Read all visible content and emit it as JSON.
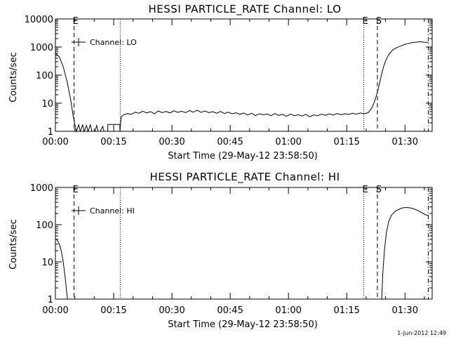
{
  "footer_timestamp": "1-Jun-2012 12:49",
  "chart_data": [
    {
      "type": "line",
      "title": "HESSI PARTICLE_RATE Channel: LO",
      "ylabel": "Counts/sec",
      "xlabel": "Start Time (29-May-12 23:58:50)",
      "y_scale": "log",
      "ylim": [
        1,
        10000
      ],
      "xlim_minutes": [
        0,
        97
      ],
      "x_ticks": [
        {
          "value": 0,
          "label": "00:00"
        },
        {
          "value": 15,
          "label": "00:15"
        },
        {
          "value": 30,
          "label": "00:30"
        },
        {
          "value": 45,
          "label": "00:45"
        },
        {
          "value": 60,
          "label": "01:00"
        },
        {
          "value": 75,
          "label": "01:15"
        },
        {
          "value": 90,
          "label": "01:30"
        }
      ],
      "y_ticks": [
        {
          "value": 1,
          "label": "1"
        },
        {
          "value": 10,
          "label": "10"
        },
        {
          "value": 100,
          "label": "100"
        },
        {
          "value": 1000,
          "label": "1000"
        },
        {
          "value": 10000,
          "label": "10000"
        }
      ],
      "legend": {
        "label": "Channel: LO",
        "placement": "top-left"
      },
      "markers": [
        {
          "x": 4.8,
          "style": "dashed",
          "label": "E"
        },
        {
          "x": 16.7,
          "style": "dotted",
          "label": ""
        },
        {
          "x": 79.4,
          "style": "dotted",
          "label": "E"
        },
        {
          "x": 82.9,
          "style": "dashed",
          "label": "S"
        },
        {
          "x": 96.0,
          "style": "dashdot",
          "label": ""
        }
      ],
      "series": [
        {
          "name": "",
          "points": [
            [
              0,
              600
            ],
            [
              1,
              450
            ],
            [
              2,
              200
            ],
            [
              3,
              60
            ],
            [
              4,
              12
            ],
            [
              4.5,
              4
            ],
            [
              5,
              1.8
            ],
            [
              5.4,
              1
            ],
            [
              6.0,
              1.7
            ],
            [
              6.4,
              1
            ],
            [
              7.0,
              1.7
            ],
            [
              7.4,
              1
            ],
            [
              8.0,
              1.6
            ],
            [
              8.4,
              1
            ],
            [
              9.0,
              1.7
            ],
            [
              9.4,
              1
            ],
            [
              10.2,
              1
            ],
            [
              10.6,
              1.6
            ],
            [
              11.0,
              1
            ],
            [
              11.5,
              1
            ],
            [
              12.2,
              1.5
            ],
            [
              12.5,
              1
            ],
            [
              13.5,
              1
            ],
            [
              13.5,
              1.75
            ],
            [
              16.6,
              1.75
            ],
            [
              16.6,
              1
            ],
            [
              16.9,
              3.2
            ],
            [
              17.5,
              3.8
            ],
            [
              18.5,
              4.3
            ],
            [
              19.5,
              4.0
            ],
            [
              20.5,
              4.8
            ],
            [
              21.5,
              4.4
            ],
            [
              22.5,
              5.2
            ],
            [
              23.5,
              4.5
            ],
            [
              24.5,
              5.0
            ],
            [
              25.5,
              4.2
            ],
            [
              26.5,
              5.3
            ],
            [
              27.5,
              4.6
            ],
            [
              28.5,
              5.1
            ],
            [
              29.5,
              4.5
            ],
            [
              30.5,
              5.4
            ],
            [
              31.5,
              4.7
            ],
            [
              32.5,
              5.2
            ],
            [
              33.5,
              4.6
            ],
            [
              34.5,
              5.5
            ],
            [
              35.5,
              4.8
            ],
            [
              36.5,
              5.6
            ],
            [
              37.5,
              4.7
            ],
            [
              38.5,
              5.3
            ],
            [
              39.5,
              4.6
            ],
            [
              40.5,
              5.0
            ],
            [
              41.5,
              4.4
            ],
            [
              42.5,
              5.1
            ],
            [
              43.5,
              4.3
            ],
            [
              44.5,
              4.8
            ],
            [
              45.5,
              4.2
            ],
            [
              46.5,
              4.6
            ],
            [
              47.5,
              4.0
            ],
            [
              48.5,
              4.5
            ],
            [
              49.5,
              3.8
            ],
            [
              50.5,
              4.4
            ],
            [
              51.5,
              3.6
            ],
            [
              52.5,
              4.2
            ],
            [
              53.5,
              3.9
            ],
            [
              54.5,
              4.1
            ],
            [
              55.5,
              3.6
            ],
            [
              56.5,
              4.3
            ],
            [
              57.5,
              3.7
            ],
            [
              58.5,
              4.0
            ],
            [
              59.5,
              3.4
            ],
            [
              60.5,
              4.1
            ],
            [
              61.5,
              3.6
            ],
            [
              62.5,
              3.9
            ],
            [
              63.5,
              3.5
            ],
            [
              64.5,
              4.0
            ],
            [
              65.5,
              3.3
            ],
            [
              66.5,
              3.8
            ],
            [
              67.5,
              3.6
            ],
            [
              68.5,
              4.1
            ],
            [
              69.5,
              3.7
            ],
            [
              70.5,
              4.2
            ],
            [
              71.5,
              3.8
            ],
            [
              72.5,
              4.3
            ],
            [
              73.5,
              3.9
            ],
            [
              74.5,
              4.2
            ],
            [
              75.5,
              4.0
            ],
            [
              76.5,
              4.4
            ],
            [
              77.5,
              4.1
            ],
            [
              78.5,
              4.5
            ],
            [
              79.5,
              4.2
            ],
            [
              80.5,
              4.6
            ],
            [
              81.0,
              5.5
            ],
            [
              81.5,
              7
            ],
            [
              82.0,
              10
            ],
            [
              82.5,
              16
            ],
            [
              83.0,
              28
            ],
            [
              83.5,
              55
            ],
            [
              84.0,
              110
            ],
            [
              84.5,
              200
            ],
            [
              85.0,
              320
            ],
            [
              85.5,
              450
            ],
            [
              86.0,
              580
            ],
            [
              86.5,
              700
            ],
            [
              87.0,
              820
            ],
            [
              88.0,
              980
            ],
            [
              89.0,
              1100
            ],
            [
              90.0,
              1250
            ],
            [
              91.0,
              1350
            ],
            [
              92.0,
              1450
            ],
            [
              93.0,
              1500
            ],
            [
              94.0,
              1550
            ],
            [
              95.0,
              1480
            ],
            [
              96.0,
              1450
            ]
          ]
        }
      ]
    },
    {
      "type": "line",
      "title": "HESSI PARTICLE_RATE Channel: HI",
      "ylabel": "Counts/sec",
      "xlabel": "Start Time (29-May-12 23:58:50)",
      "y_scale": "log",
      "ylim": [
        1,
        1000
      ],
      "xlim_minutes": [
        0,
        97
      ],
      "x_ticks": [
        {
          "value": 0,
          "label": "00:00"
        },
        {
          "value": 15,
          "label": "00:15"
        },
        {
          "value": 30,
          "label": "00:30"
        },
        {
          "value": 45,
          "label": "00:45"
        },
        {
          "value": 60,
          "label": "01:00"
        },
        {
          "value": 75,
          "label": "01:15"
        },
        {
          "value": 90,
          "label": "01:30"
        }
      ],
      "y_ticks": [
        {
          "value": 1,
          "label": "1"
        },
        {
          "value": 10,
          "label": "10"
        },
        {
          "value": 100,
          "label": "100"
        },
        {
          "value": 1000,
          "label": "1000"
        }
      ],
      "legend": {
        "label": "Channel: HI",
        "placement": "top-left"
      },
      "markers": [
        {
          "x": 4.8,
          "style": "dashed",
          "label": "E"
        },
        {
          "x": 16.7,
          "style": "dotted",
          "label": ""
        },
        {
          "x": 79.4,
          "style": "dotted",
          "label": "E"
        },
        {
          "x": 82.9,
          "style": "dashed",
          "label": "S"
        },
        {
          "x": 96.0,
          "style": "dashdot",
          "label": ""
        }
      ],
      "series": [
        {
          "name": "",
          "points": [
            [
              0,
              42
            ],
            [
              0.5,
              38
            ],
            [
              1,
              30
            ],
            [
              1.5,
              20
            ],
            [
              2,
              10
            ],
            [
              2.5,
              4
            ],
            [
              2.9,
              1.5
            ],
            [
              3.1,
              1
            ]
          ]
        },
        {
          "name": "",
          "points": [
            [
              84.0,
              1
            ],
            [
              84.3,
              5
            ],
            [
              84.7,
              20
            ],
            [
              85.2,
              60
            ],
            [
              85.8,
              120
            ],
            [
              86.5,
              180
            ],
            [
              87.5,
              230
            ],
            [
              88.5,
              260
            ],
            [
              89.5,
              285
            ],
            [
              90.5,
              290
            ],
            [
              91.5,
              280
            ],
            [
              92.5,
              260
            ],
            [
              93.5,
              235
            ],
            [
              94.5,
              205
            ],
            [
              95.3,
              185
            ],
            [
              96.0,
              175
            ]
          ]
        }
      ]
    }
  ]
}
